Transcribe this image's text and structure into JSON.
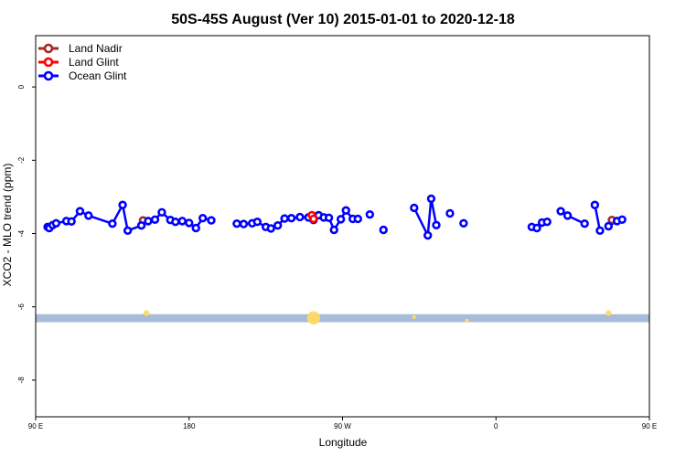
{
  "chart_data": {
    "type": "line",
    "title": "50S-45S August (Ver 10)   2015-01-01 to 2020-12-18",
    "xlabel": "Longitude",
    "ylabel": "XCO2 - MLO trend (ppm)",
    "x_unit": "degrees east, continuous from 90 E to 450 (=90 E)",
    "xlim": [
      90,
      450
    ],
    "ylim": [
      -9,
      1.4
    ],
    "x_ticks": [
      {
        "value": 90,
        "label": "90 E"
      },
      {
        "value": 180,
        "label": "180"
      },
      {
        "value": 270,
        "label": "90 W"
      },
      {
        "value": 360,
        "label": "0"
      },
      {
        "value": 450,
        "label": "90 E"
      },
      {
        "value": 540,
        "label": "180"
      }
    ],
    "y_ticks": [
      {
        "value": 0,
        "label": "0"
      },
      {
        "value": -2,
        "label": "-2"
      },
      {
        "value": -4,
        "label": "-4"
      },
      {
        "value": -6,
        "label": "-6"
      },
      {
        "value": -8,
        "label": "-8"
      }
    ],
    "legend": {
      "placement": "top-left",
      "entries": [
        {
          "name": "Land Nadir",
          "color": "#a52a2a"
        },
        {
          "name": "Land Glint",
          "color": "#ff0000"
        },
        {
          "name": "Ocean Glint",
          "color": "#0000ff"
        }
      ]
    },
    "series": [
      {
        "name": "Ocean Glint",
        "color": "#0000ff",
        "segments": [
          [
            [
              97,
              -3.82
            ],
            [
              98,
              -3.85
            ],
            [
              100,
              -3.77
            ],
            [
              102,
              -3.72
            ],
            [
              108,
              -3.66
            ],
            [
              111,
              -3.67
            ],
            [
              116,
              -3.39
            ],
            [
              121,
              -3.51
            ],
            [
              135,
              -3.73
            ],
            [
              141,
              -3.22
            ],
            [
              144,
              -3.92
            ],
            [
              152,
              -3.78
            ],
            [
              156,
              -3.66
            ],
            [
              160,
              -3.62
            ],
            [
              164,
              -3.42
            ],
            [
              169,
              -3.63
            ],
            [
              172,
              -3.68
            ],
            [
              176,
              -3.66
            ],
            [
              180,
              -3.71
            ],
            [
              184,
              -3.85
            ],
            [
              188,
              -3.58
            ],
            [
              193,
              -3.64
            ]
          ],
          [
            [
              208,
              -3.73
            ],
            [
              212,
              -3.74
            ],
            [
              217,
              -3.72
            ],
            [
              220,
              -3.68
            ],
            [
              225,
              -3.82
            ],
            [
              228,
              -3.86
            ],
            [
              232,
              -3.78
            ],
            [
              236,
              -3.59
            ],
            [
              240,
              -3.58
            ],
            [
              245,
              -3.55
            ],
            [
              250,
              -3.56
            ],
            [
              253,
              -3.63
            ],
            [
              256,
              -3.5
            ],
            [
              259,
              -3.56
            ],
            [
              262,
              -3.57
            ],
            [
              265,
              -3.9
            ],
            [
              269,
              -3.61
            ],
            [
              272,
              -3.37
            ],
            [
              276,
              -3.6
            ],
            [
              279,
              -3.6
            ]
          ],
          [
            [
              286,
              -3.48
            ]
          ],
          [
            [
              294,
              -3.9
            ]
          ],
          [
            [
              312,
              -3.3
            ],
            [
              320,
              -4.05
            ],
            [
              322,
              -3.05
            ],
            [
              325,
              -3.77
            ]
          ],
          [
            [
              333,
              -3.45
            ]
          ],
          [
            [
              341,
              -3.72
            ]
          ],
          [
            [
              381,
              -3.82
            ],
            [
              384,
              -3.85
            ],
            [
              387,
              -3.7
            ],
            [
              390,
              -3.68
            ]
          ],
          [
            [
              398,
              -3.39
            ],
            [
              402,
              -3.51
            ],
            [
              412,
              -3.73
            ]
          ],
          [
            [
              418,
              -3.22
            ],
            [
              421,
              -3.92
            ]
          ],
          [
            [
              426,
              -3.8
            ],
            [
              431,
              -3.66
            ],
            [
              434,
              -3.62
            ]
          ]
        ]
      },
      {
        "name": "Land Nadir",
        "color": "#a52a2a",
        "segments": [
          [
            [
              153,
              -3.64
            ]
          ],
          [
            [
              428,
              -3.63
            ]
          ]
        ]
      },
      {
        "name": "Land Glint",
        "color": "#ff0000",
        "segments": [
          [
            [
              252,
              -3.5
            ],
            [
              253,
              -3.6
            ]
          ]
        ]
      }
    ],
    "background_band": {
      "y_from": -6.2,
      "y_to": -6.42,
      "color": "#a7bcd8"
    },
    "band_highlights": [
      {
        "x": 155,
        "y": -6.17,
        "color": "#ffd966",
        "size": 1
      },
      {
        "x": 253,
        "y": -6.3,
        "color": "#ffd966",
        "size": 3
      },
      {
        "x": 312,
        "y": -6.28,
        "color": "#ffd966",
        "size": 0.5
      },
      {
        "x": 343,
        "y": -6.38,
        "color": "#ffd966",
        "size": 0.5
      },
      {
        "x": 426,
        "y": -6.17,
        "color": "#ffd966",
        "size": 1
      }
    ]
  }
}
